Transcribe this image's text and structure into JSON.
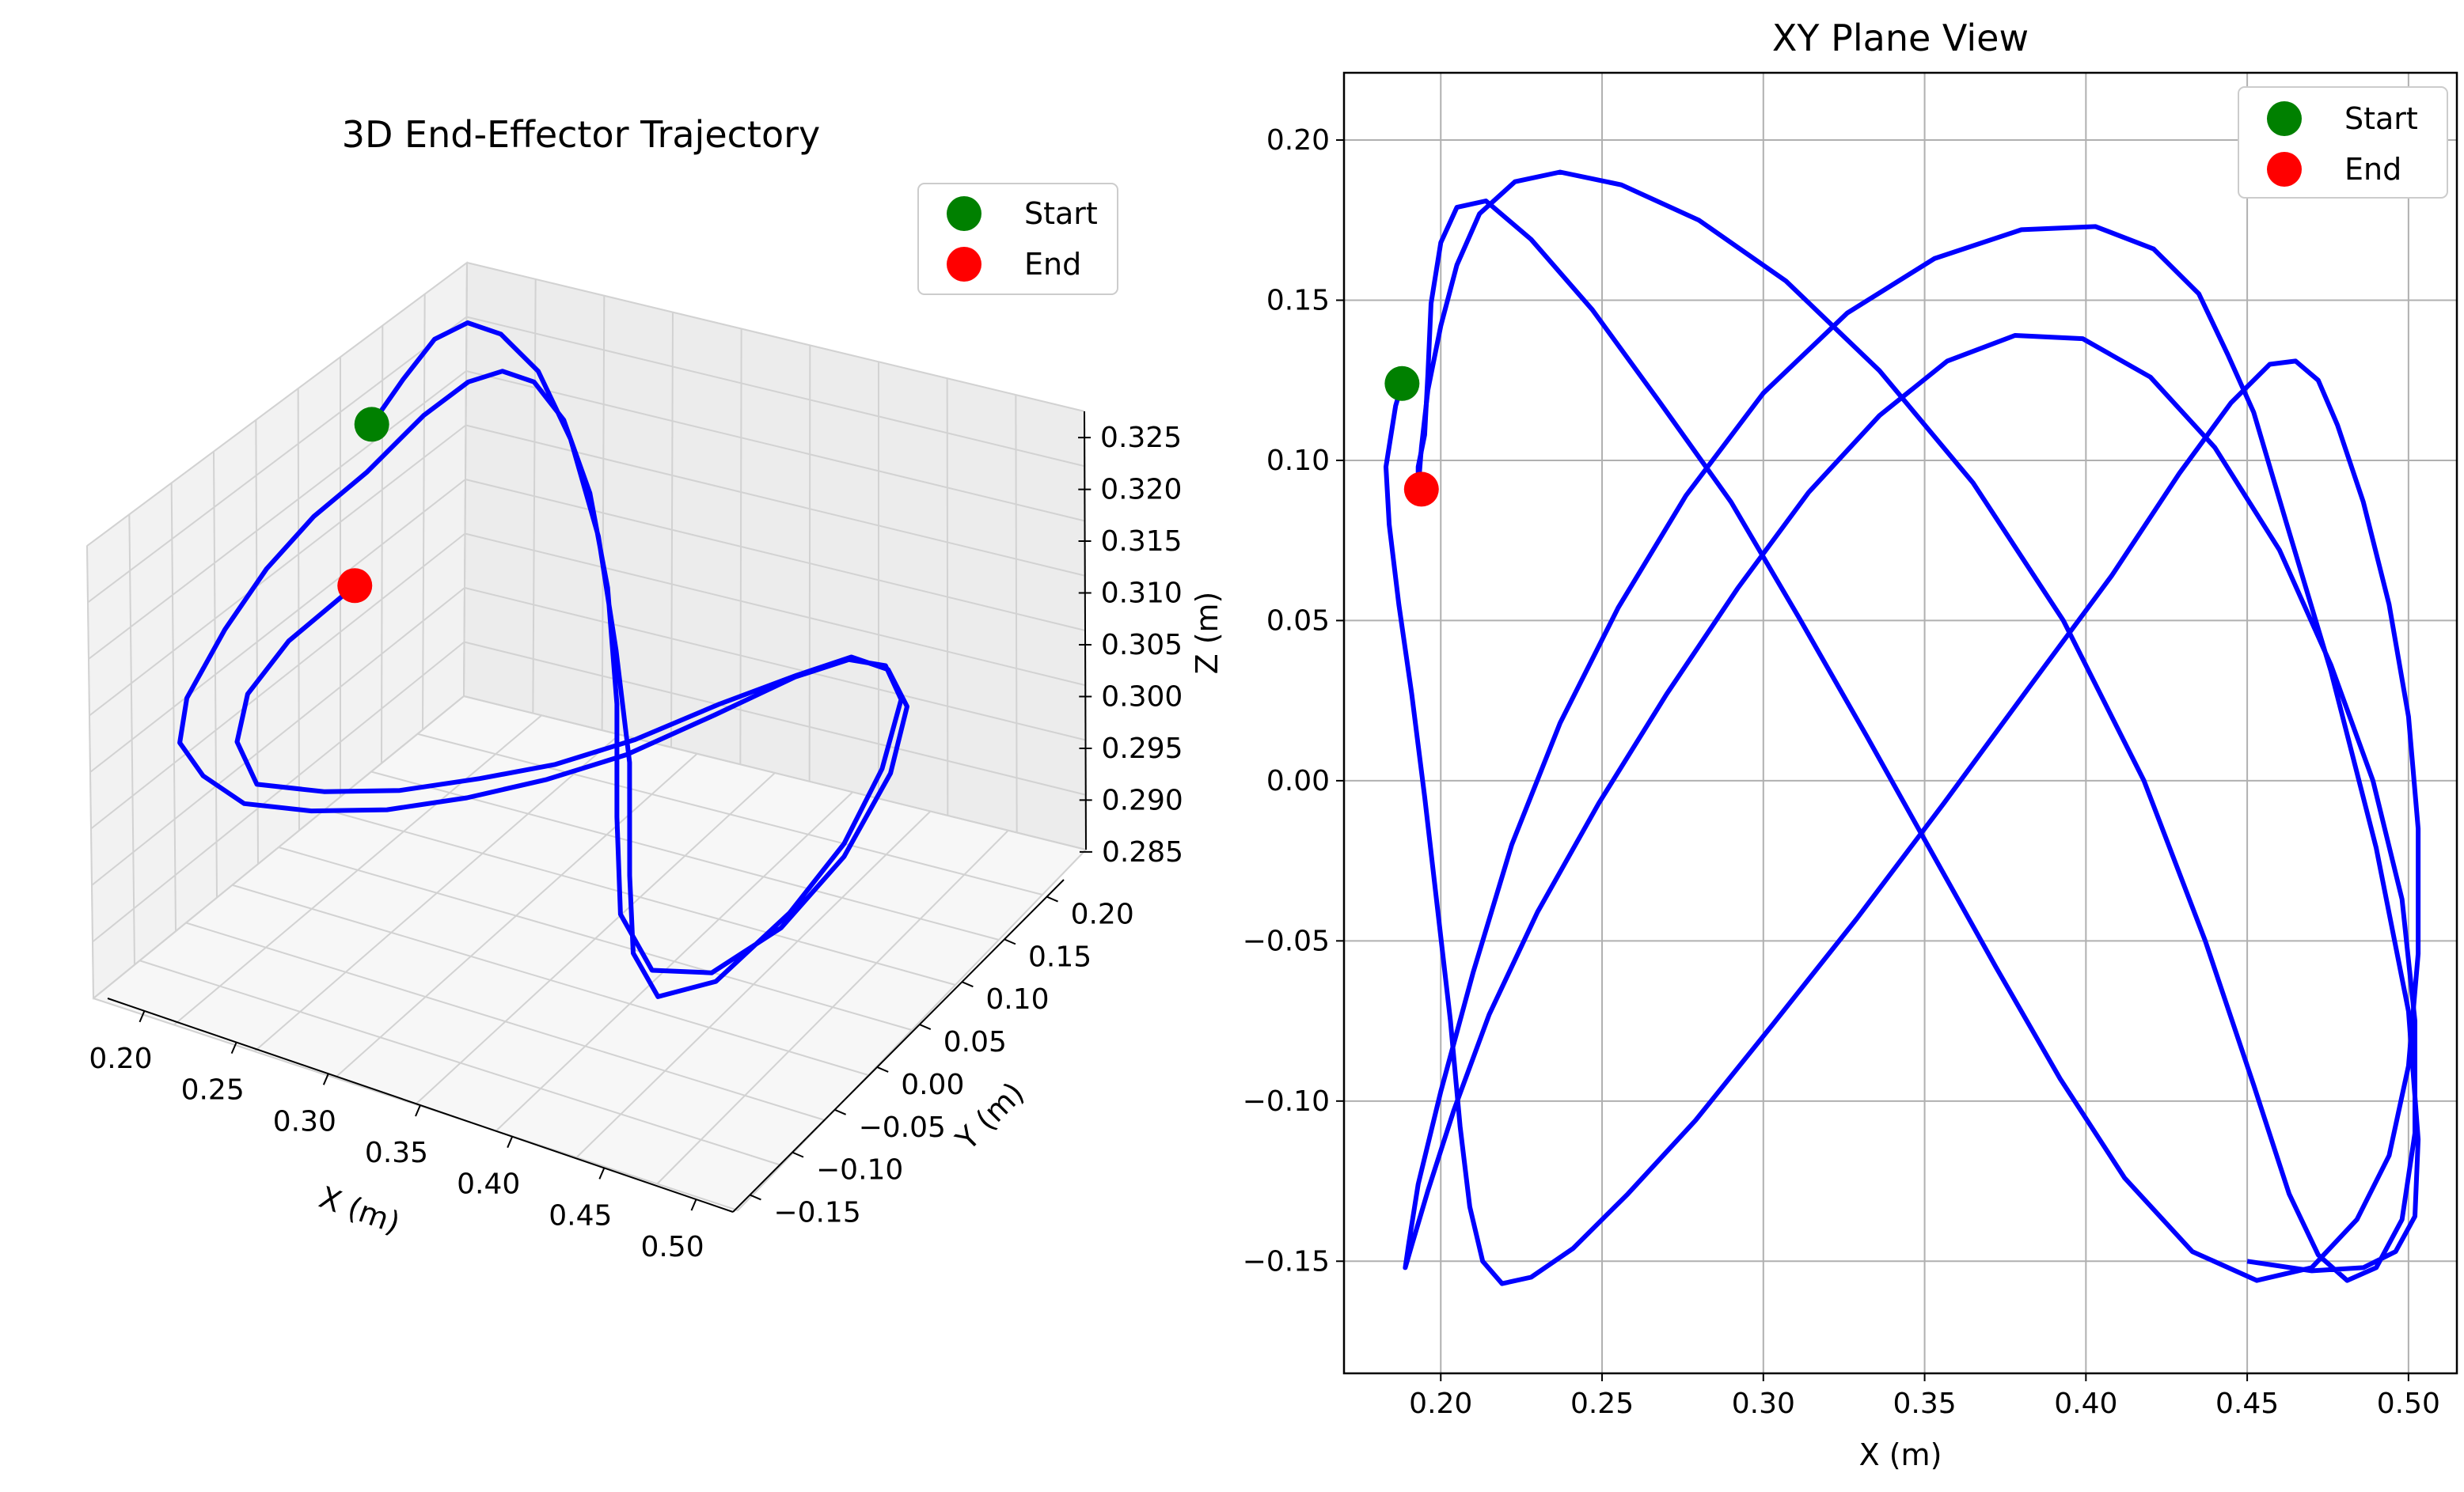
{
  "chart_data": [
    {
      "type": "line3d",
      "title": "3D End-Effector Trajectory",
      "xlabel": "X (m)",
      "ylabel": "Y (m)",
      "zlabel": "Z (m)",
      "xticks": [
        "0.20",
        "0.25",
        "0.30",
        "0.35",
        "0.40",
        "0.45",
        "0.50"
      ],
      "yticks": [
        "−0.15",
        "−0.10",
        "−0.05",
        "0.00",
        "0.05",
        "0.10",
        "0.15",
        "0.20"
      ],
      "zticks": [
        "0.285",
        "0.290",
        "0.295",
        "0.300",
        "0.305",
        "0.310",
        "0.315",
        "0.320",
        "0.325"
      ],
      "xlim": [
        0.18,
        0.52
      ],
      "ylim": [
        -0.17,
        0.22
      ],
      "zlim": [
        0.284,
        0.326
      ],
      "grid": true,
      "legend_position": "upper right",
      "legend": [
        {
          "label": "Start",
          "color": "#008000"
        },
        {
          "label": "End",
          "color": "#ff0000"
        }
      ],
      "line_color": "#0000ff",
      "series": [
        {
          "x": [
            0.188,
            0.193,
            0.2,
            0.212,
            0.23,
            0.255,
            0.285,
            0.32,
            0.355,
            0.39,
            0.42,
            0.445,
            0.47,
            0.49,
            0.5,
            0.502,
            0.495,
            0.48,
            0.46,
            0.44,
            0.42,
            0.395,
            0.37,
            0.345,
            0.32,
            0.295,
            0.27,
            0.245,
            0.225,
            0.21,
            0.2,
            0.193,
            0.188,
            0.186,
            0.187,
            0.195,
            0.21,
            0.23,
            0.255,
            0.285,
            0.32,
            0.355,
            0.39,
            0.42,
            0.445,
            0.47,
            0.49,
            0.5,
            0.502,
            0.495,
            0.48,
            0.46,
            0.44,
            0.42,
            0.395,
            0.37,
            0.345,
            0.32,
            0.295,
            0.27,
            0.245,
            0.225,
            0.21,
            0.2,
            0.194
          ],
          "y": [
            0.124,
            0.15,
            0.172,
            0.185,
            0.185,
            0.175,
            0.148,
            0.105,
            0.05,
            -0.01,
            -0.075,
            -0.125,
            -0.15,
            -0.125,
            -0.06,
            0.0,
            0.06,
            0.115,
            0.14,
            0.14,
            0.12,
            0.08,
            0.03,
            -0.01,
            -0.05,
            -0.09,
            -0.125,
            -0.15,
            -0.155,
            -0.15,
            -0.12,
            -0.06,
            0.0,
            0.06,
            0.12,
            0.17,
            0.19,
            0.187,
            0.17,
            0.14,
            0.095,
            0.04,
            -0.025,
            -0.09,
            -0.14,
            -0.157,
            -0.13,
            -0.07,
            0.0,
            0.07,
            0.122,
            0.143,
            0.143,
            0.122,
            0.085,
            0.04,
            0.0,
            -0.035,
            -0.075,
            -0.11,
            -0.135,
            -0.115,
            -0.07,
            0.0,
            0.091
          ],
          "z": [
            0.314,
            0.318,
            0.322,
            0.324,
            0.324,
            0.322,
            0.318,
            0.312,
            0.305,
            0.299,
            0.293,
            0.29,
            0.289,
            0.29,
            0.293,
            0.296,
            0.299,
            0.301,
            0.301,
            0.3,
            0.298,
            0.295,
            0.293,
            0.292,
            0.292,
            0.293,
            0.295,
            0.297,
            0.3,
            0.303,
            0.305,
            0.307,
            0.308,
            0.308,
            0.307,
            0.31,
            0.314,
            0.318,
            0.321,
            0.322,
            0.32,
            0.316,
            0.31,
            0.304,
            0.298,
            0.294,
            0.292,
            0.292,
            0.294,
            0.297,
            0.299,
            0.3,
            0.3,
            0.298,
            0.296,
            0.294,
            0.293,
            0.293,
            0.294,
            0.296,
            0.298,
            0.3,
            0.3,
            0.298,
            0.294
          ]
        }
      ],
      "start": {
        "x": 0.188,
        "y": 0.124,
        "z": 0.314
      },
      "end": {
        "x": 0.194,
        "y": 0.091,
        "z": 0.294
      }
    },
    {
      "type": "line",
      "title": "XY Plane View",
      "xlabel": "X (m)",
      "ylabel": "",
      "xticks": [
        "0.20",
        "0.25",
        "0.30",
        "0.35",
        "0.40",
        "0.45",
        "0.50"
      ],
      "yticks": [
        "−0.15",
        "−0.10",
        "−0.05",
        "0.00",
        "0.05",
        "0.10",
        "0.15",
        "0.20"
      ],
      "xlim": [
        0.17,
        0.515
      ],
      "ylim": [
        -0.185,
        0.221
      ],
      "grid": true,
      "legend_position": "upper right",
      "legend": [
        {
          "label": "Start",
          "color": "#008000"
        },
        {
          "label": "End",
          "color": "#ff0000"
        }
      ],
      "line_color": "#0000ff",
      "series": [
        {
          "x": [
            0.188,
            0.186,
            0.183,
            0.184,
            0.187,
            0.191,
            0.195,
            0.199,
            0.203,
            0.206,
            0.209,
            0.213,
            0.219,
            0.228,
            0.241,
            0.258,
            0.279,
            0.303,
            0.329,
            0.356,
            0.383,
            0.408,
            0.429,
            0.445,
            0.457,
            0.465,
            0.472,
            0.478,
            0.486,
            0.494,
            0.5,
            0.503,
            0.503,
            0.5,
            0.494,
            0.484,
            0.47,
            0.453,
            0.433,
            0.412,
            0.392,
            0.372,
            0.352,
            0.332,
            0.311,
            0.29,
            0.268,
            0.247,
            0.228,
            0.214,
            0.205,
            0.2,
            0.197,
            0.196,
            0.195,
            0.193,
            0.193
          ],
          "y": [
            0.124,
            0.117,
            0.098,
            0.08,
            0.055,
            0.027,
            -0.005,
            -0.04,
            -0.075,
            -0.108,
            -0.133,
            -0.15,
            -0.157,
            -0.155,
            -0.146,
            -0.129,
            -0.106,
            -0.076,
            -0.043,
            -0.007,
            0.03,
            0.064,
            0.096,
            0.118,
            0.13,
            0.131,
            0.125,
            0.111,
            0.087,
            0.055,
            0.02,
            -0.015,
            -0.054,
            -0.089,
            -0.117,
            -0.137,
            -0.152,
            -0.156,
            -0.147,
            -0.124,
            -0.093,
            -0.058,
            -0.022,
            0.014,
            0.051,
            0.087,
            0.118,
            0.147,
            0.169,
            0.181,
            0.179,
            0.168,
            0.149,
            0.127,
            0.108,
            0.098,
            0.091
          ]
        },
        {
          "x": [
            0.193,
            0.194,
            0.196,
            0.2,
            0.205,
            0.212,
            0.223,
            0.237,
            0.256,
            0.28,
            0.307,
            0.336,
            0.365,
            0.393,
            0.418,
            0.437,
            0.452,
            0.463,
            0.472,
            0.481,
            0.49,
            0.498,
            0.502,
            0.502,
            0.498,
            0.489,
            0.476,
            0.46,
            0.44,
            0.42,
            0.399,
            0.378,
            0.357,
            0.336,
            0.314,
            0.292,
            0.27,
            0.249,
            0.23,
            0.215,
            0.204,
            0.196,
            0.191,
            0.189,
            0.19,
            0.193,
            0.2,
            0.21,
            0.222,
            0.237,
            0.255,
            0.276,
            0.3,
            0.326,
            0.353,
            0.38,
            0.403,
            0.421,
            0.435,
            0.444,
            0.452,
            0.462,
            0.476,
            0.49,
            0.5,
            0.503,
            0.502,
            0.496,
            0.486,
            0.47,
            0.45
          ],
          "y": [
            0.091,
            0.104,
            0.122,
            0.142,
            0.161,
            0.177,
            0.187,
            0.19,
            0.186,
            0.175,
            0.156,
            0.128,
            0.093,
            0.05,
            0.0,
            -0.05,
            -0.095,
            -0.129,
            -0.148,
            -0.156,
            -0.152,
            -0.137,
            -0.11,
            -0.075,
            -0.037,
            0.0,
            0.036,
            0.072,
            0.104,
            0.126,
            0.138,
            0.139,
            0.131,
            0.114,
            0.09,
            0.06,
            0.027,
            -0.007,
            -0.041,
            -0.073,
            -0.103,
            -0.128,
            -0.145,
            -0.152,
            -0.145,
            -0.126,
            -0.097,
            -0.06,
            -0.02,
            0.018,
            0.054,
            0.089,
            0.121,
            0.146,
            0.163,
            0.172,
            0.173,
            0.166,
            0.152,
            0.133,
            0.115,
            0.081,
            0.034,
            -0.021,
            -0.072,
            -0.112,
            -0.136,
            -0.147,
            -0.152,
            -0.153,
            -0.15
          ]
        }
      ],
      "start": {
        "x": 0.188,
        "y": 0.124
      },
      "end": {
        "x": 0.194,
        "y": 0.091
      }
    }
  ]
}
